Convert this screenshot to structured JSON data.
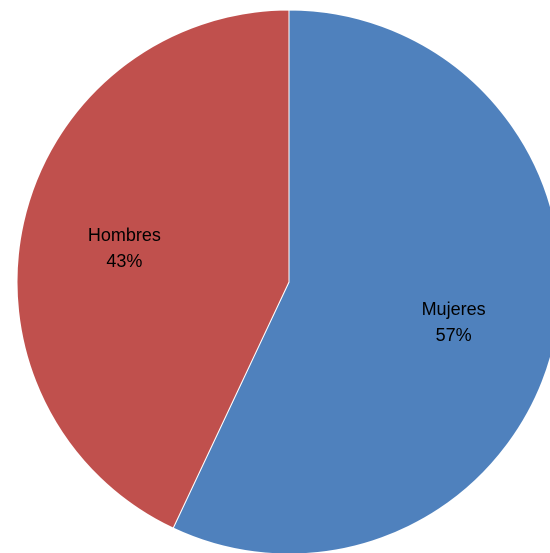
{
  "chart_data": {
    "type": "pie",
    "title": "",
    "start_angle_deg": 0,
    "direction": "clockwise",
    "legend": "none",
    "slices": [
      {
        "name": "Mujeres",
        "value": 57,
        "percent_label": "57%",
        "color": "#4F81BD"
      },
      {
        "name": "Hombres",
        "value": 43,
        "percent_label": "43%",
        "color": "#C0504D"
      }
    ]
  }
}
